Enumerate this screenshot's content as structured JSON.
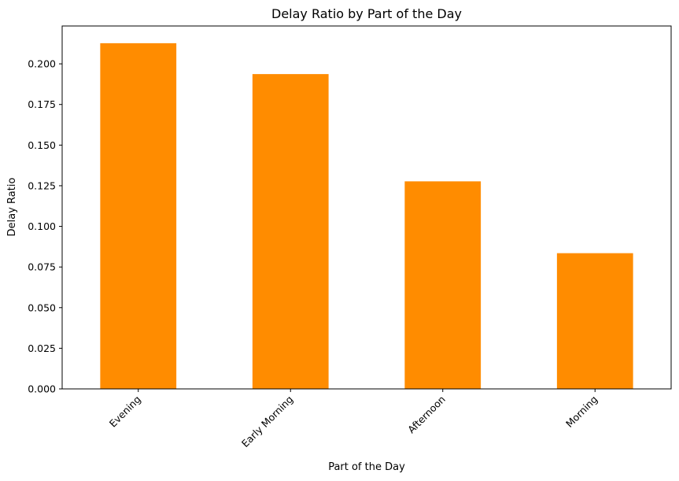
{
  "chart_data": {
    "type": "bar",
    "title": "Delay Ratio by Part of the Day",
    "xlabel": "Part of the Day",
    "ylabel": "Delay Ratio",
    "categories": [
      "Evening",
      "Early Morning",
      "Afternoon",
      "Morning"
    ],
    "values": [
      0.2127,
      0.1937,
      0.1277,
      0.0835
    ],
    "ylim": [
      0,
      0.2233
    ],
    "yticks": [
      "0.000",
      "0.025",
      "0.050",
      "0.075",
      "0.100",
      "0.125",
      "0.150",
      "0.175",
      "0.200"
    ],
    "bar_color": "#ff8c00",
    "grid": false,
    "legend": "none"
  }
}
